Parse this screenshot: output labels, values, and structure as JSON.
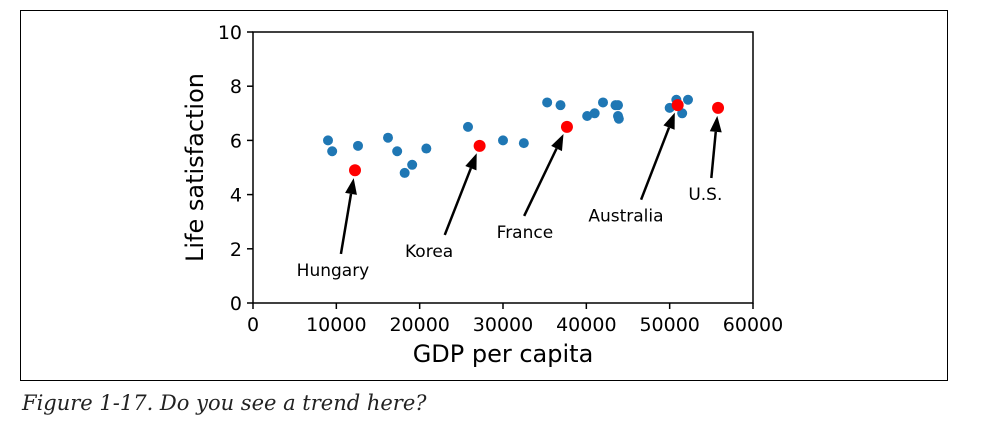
{
  "figure": {
    "caption": "Figure 1-17. Do you see a trend here?"
  },
  "chart_data": {
    "type": "scatter",
    "title": "",
    "xlabel": "GDP per capita",
    "ylabel": "Life satisfaction",
    "xlim": [
      0,
      60000
    ],
    "ylim": [
      0,
      10
    ],
    "xticks": [
      0,
      10000,
      20000,
      30000,
      40000,
      50000,
      60000
    ],
    "yticks": [
      0,
      2,
      4,
      6,
      8,
      10
    ],
    "grid": false,
    "series": [
      {
        "color": "#1f77b4",
        "points": [
          [
            9000,
            6.0
          ],
          [
            9500,
            5.6
          ],
          [
            12600,
            5.8
          ],
          [
            16200,
            6.1
          ],
          [
            17300,
            5.6
          ],
          [
            18200,
            4.8
          ],
          [
            19100,
            5.1
          ],
          [
            20800,
            5.7
          ],
          [
            25800,
            6.5
          ],
          [
            30000,
            6.0
          ],
          [
            32500,
            5.9
          ],
          [
            35300,
            7.4
          ],
          [
            36900,
            7.3
          ],
          [
            40100,
            6.9
          ],
          [
            41000,
            7.0
          ],
          [
            42000,
            7.4
          ],
          [
            43500,
            7.3
          ],
          [
            43800,
            7.3
          ],
          [
            43800,
            6.9
          ],
          [
            43900,
            6.8
          ],
          [
            50000,
            7.2
          ],
          [
            50800,
            7.5
          ],
          [
            51500,
            7.0
          ],
          [
            52200,
            7.5
          ]
        ]
      },
      {
        "color": "#ff0000",
        "points": [
          [
            12240,
            4.9
          ],
          [
            27195,
            5.8
          ],
          [
            37675,
            6.5
          ],
          [
            50962,
            7.3
          ],
          [
            55805,
            7.2
          ]
        ]
      }
    ],
    "annotations": [
      {
        "text": "Hungary",
        "point": [
          12240,
          4.9
        ],
        "text_pos": [
          5000,
          1.0
        ]
      },
      {
        "text": "Korea",
        "point": [
          27195,
          5.8
        ],
        "text_pos": [
          18000,
          1.7
        ]
      },
      {
        "text": "France",
        "point": [
          37675,
          6.5
        ],
        "text_pos": [
          29000,
          2.4
        ]
      },
      {
        "text": "Australia",
        "point": [
          50962,
          7.3
        ],
        "text_pos": [
          40000,
          3.0
        ]
      },
      {
        "text": "U.S.",
        "point": [
          55805,
          7.2
        ],
        "text_pos": [
          52000,
          3.8
        ]
      }
    ]
  }
}
